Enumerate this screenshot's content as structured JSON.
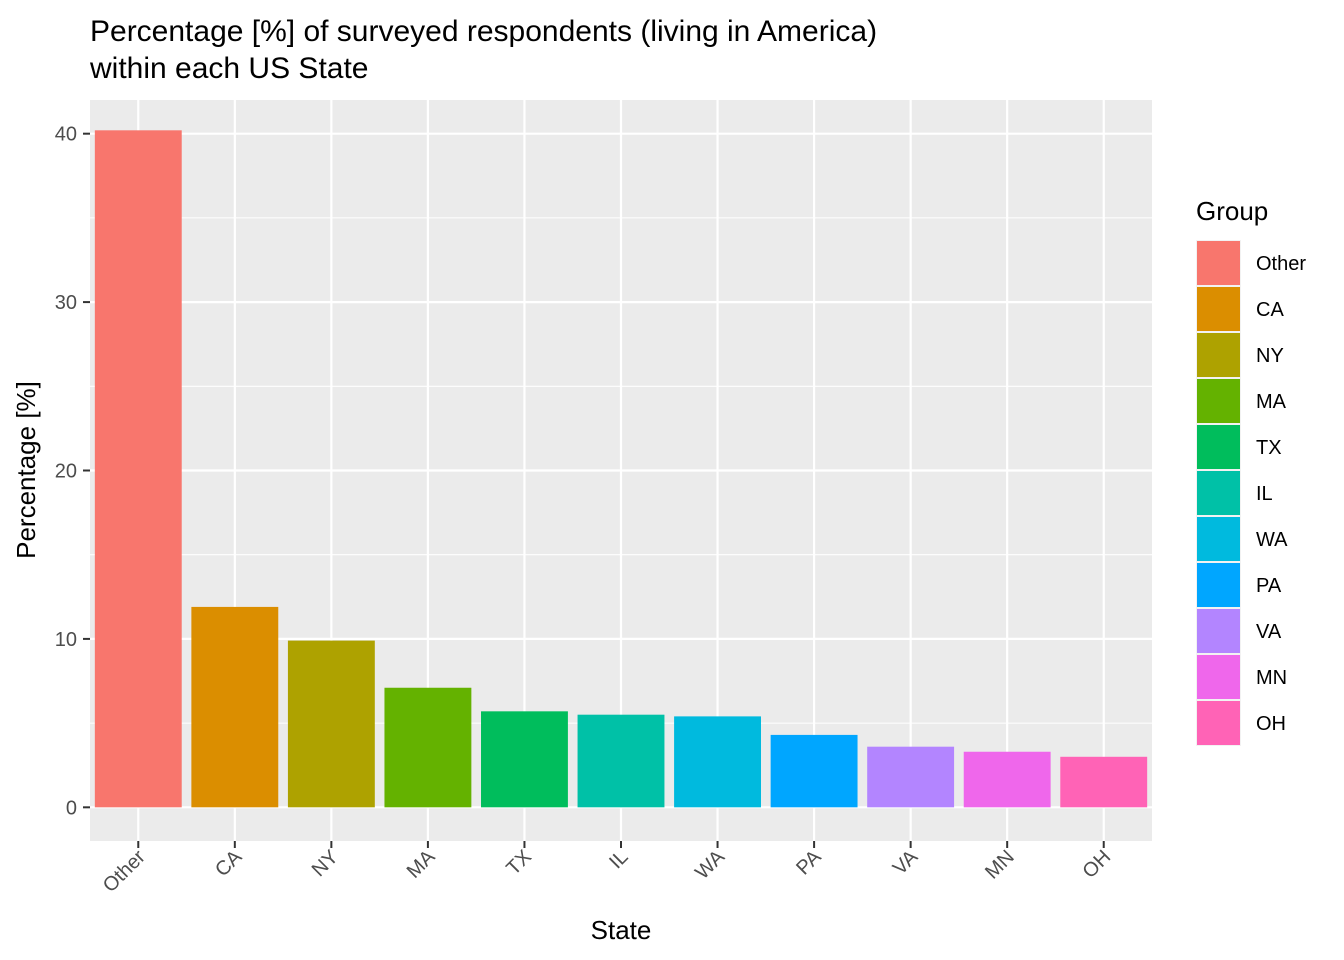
{
  "chart_data": {
    "type": "bar",
    "title_lines": [
      "Percentage [%] of surveyed respondents (living in America)",
      "within each US State"
    ],
    "xlabel": "State",
    "ylabel": "Percentage [%]",
    "ylim": [
      -2,
      42
    ],
    "yticks": [
      0,
      10,
      20,
      30,
      40
    ],
    "categories": [
      "Other",
      "CA",
      "NY",
      "MA",
      "TX",
      "IL",
      "WA",
      "PA",
      "VA",
      "MN",
      "OH"
    ],
    "values": [
      40.2,
      11.9,
      9.9,
      7.1,
      5.7,
      5.5,
      5.4,
      4.3,
      3.6,
      3.3,
      3.0
    ],
    "colors": [
      "#F8766D",
      "#DB8E00",
      "#AEA200",
      "#64B200",
      "#00BD5C",
      "#00C1A7",
      "#00BADE",
      "#00A6FF",
      "#B385FF",
      "#EF67EB",
      "#FF63B6"
    ],
    "grid": true,
    "legend": {
      "title": "Group",
      "position": "right",
      "entries": [
        "Other",
        "CA",
        "NY",
        "MA",
        "TX",
        "IL",
        "WA",
        "PA",
        "VA",
        "MN",
        "OH"
      ]
    }
  }
}
